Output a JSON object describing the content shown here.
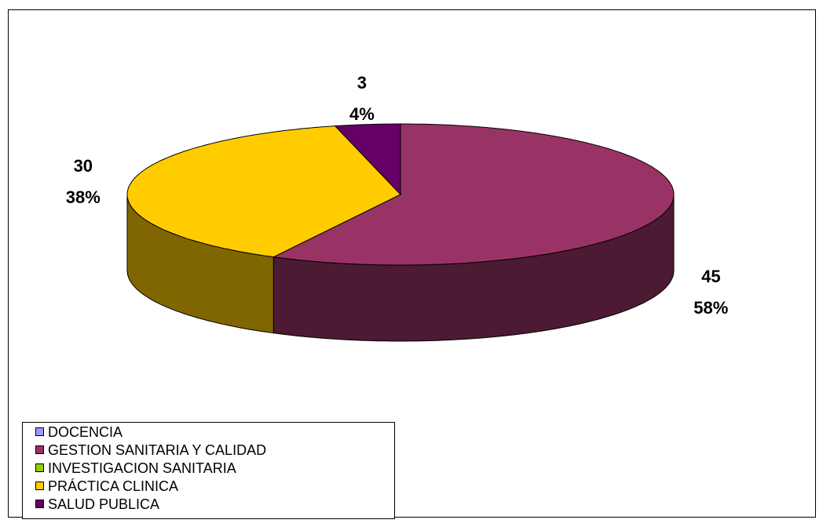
{
  "chart_data": {
    "type": "pie3d",
    "categories": [
      "DOCENCIA",
      "GESTION SANITARIA Y CALIDAD",
      "INVESTIGACION SANITARIA",
      "PRÁCTICA CLINICA",
      "SALUD PUBLICA"
    ],
    "values": [
      0,
      45,
      0,
      30,
      3
    ],
    "percent_labels": [
      null,
      "58%",
      null,
      "38%",
      "4%"
    ],
    "colors": [
      "#9999ff",
      "#993366",
      "#99cc00",
      "#ffcc00",
      "#660066"
    ],
    "legend": "bottom-left"
  }
}
